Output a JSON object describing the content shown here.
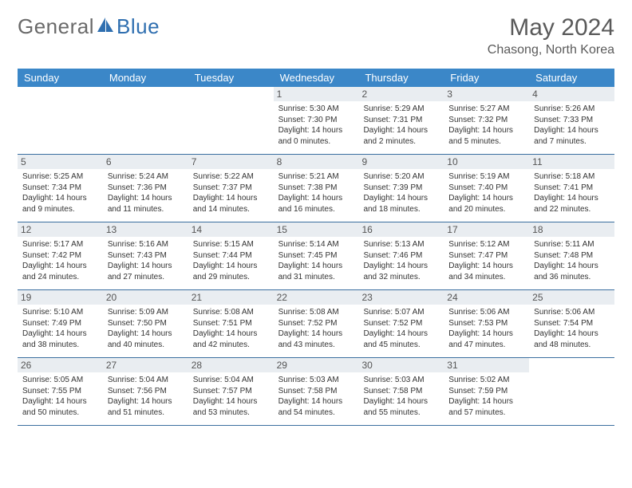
{
  "brand": {
    "word1": "General",
    "word2": "Blue"
  },
  "title": "May 2024",
  "location": "Chasong, North Korea",
  "colors": {
    "header_bg": "#3b87c8",
    "header_text": "#ffffff",
    "daynum_bg": "#e9edf1",
    "row_border": "#3b6fa0",
    "logo_gray": "#6a6a6a",
    "logo_blue": "#2f6fb0",
    "text": "#333333"
  },
  "day_headers": [
    "Sunday",
    "Monday",
    "Tuesday",
    "Wednesday",
    "Thursday",
    "Friday",
    "Saturday"
  ],
  "weeks": [
    [
      {
        "n": "",
        "sunrise": "",
        "sunset": "",
        "daylight": ""
      },
      {
        "n": "",
        "sunrise": "",
        "sunset": "",
        "daylight": ""
      },
      {
        "n": "",
        "sunrise": "",
        "sunset": "",
        "daylight": ""
      },
      {
        "n": "1",
        "sunrise": "Sunrise: 5:30 AM",
        "sunset": "Sunset: 7:30 PM",
        "daylight": "Daylight: 14 hours and 0 minutes."
      },
      {
        "n": "2",
        "sunrise": "Sunrise: 5:29 AM",
        "sunset": "Sunset: 7:31 PM",
        "daylight": "Daylight: 14 hours and 2 minutes."
      },
      {
        "n": "3",
        "sunrise": "Sunrise: 5:27 AM",
        "sunset": "Sunset: 7:32 PM",
        "daylight": "Daylight: 14 hours and 5 minutes."
      },
      {
        "n": "4",
        "sunrise": "Sunrise: 5:26 AM",
        "sunset": "Sunset: 7:33 PM",
        "daylight": "Daylight: 14 hours and 7 minutes."
      }
    ],
    [
      {
        "n": "5",
        "sunrise": "Sunrise: 5:25 AM",
        "sunset": "Sunset: 7:34 PM",
        "daylight": "Daylight: 14 hours and 9 minutes."
      },
      {
        "n": "6",
        "sunrise": "Sunrise: 5:24 AM",
        "sunset": "Sunset: 7:36 PM",
        "daylight": "Daylight: 14 hours and 11 minutes."
      },
      {
        "n": "7",
        "sunrise": "Sunrise: 5:22 AM",
        "sunset": "Sunset: 7:37 PM",
        "daylight": "Daylight: 14 hours and 14 minutes."
      },
      {
        "n": "8",
        "sunrise": "Sunrise: 5:21 AM",
        "sunset": "Sunset: 7:38 PM",
        "daylight": "Daylight: 14 hours and 16 minutes."
      },
      {
        "n": "9",
        "sunrise": "Sunrise: 5:20 AM",
        "sunset": "Sunset: 7:39 PM",
        "daylight": "Daylight: 14 hours and 18 minutes."
      },
      {
        "n": "10",
        "sunrise": "Sunrise: 5:19 AM",
        "sunset": "Sunset: 7:40 PM",
        "daylight": "Daylight: 14 hours and 20 minutes."
      },
      {
        "n": "11",
        "sunrise": "Sunrise: 5:18 AM",
        "sunset": "Sunset: 7:41 PM",
        "daylight": "Daylight: 14 hours and 22 minutes."
      }
    ],
    [
      {
        "n": "12",
        "sunrise": "Sunrise: 5:17 AM",
        "sunset": "Sunset: 7:42 PM",
        "daylight": "Daylight: 14 hours and 24 minutes."
      },
      {
        "n": "13",
        "sunrise": "Sunrise: 5:16 AM",
        "sunset": "Sunset: 7:43 PM",
        "daylight": "Daylight: 14 hours and 27 minutes."
      },
      {
        "n": "14",
        "sunrise": "Sunrise: 5:15 AM",
        "sunset": "Sunset: 7:44 PM",
        "daylight": "Daylight: 14 hours and 29 minutes."
      },
      {
        "n": "15",
        "sunrise": "Sunrise: 5:14 AM",
        "sunset": "Sunset: 7:45 PM",
        "daylight": "Daylight: 14 hours and 31 minutes."
      },
      {
        "n": "16",
        "sunrise": "Sunrise: 5:13 AM",
        "sunset": "Sunset: 7:46 PM",
        "daylight": "Daylight: 14 hours and 32 minutes."
      },
      {
        "n": "17",
        "sunrise": "Sunrise: 5:12 AM",
        "sunset": "Sunset: 7:47 PM",
        "daylight": "Daylight: 14 hours and 34 minutes."
      },
      {
        "n": "18",
        "sunrise": "Sunrise: 5:11 AM",
        "sunset": "Sunset: 7:48 PM",
        "daylight": "Daylight: 14 hours and 36 minutes."
      }
    ],
    [
      {
        "n": "19",
        "sunrise": "Sunrise: 5:10 AM",
        "sunset": "Sunset: 7:49 PM",
        "daylight": "Daylight: 14 hours and 38 minutes."
      },
      {
        "n": "20",
        "sunrise": "Sunrise: 5:09 AM",
        "sunset": "Sunset: 7:50 PM",
        "daylight": "Daylight: 14 hours and 40 minutes."
      },
      {
        "n": "21",
        "sunrise": "Sunrise: 5:08 AM",
        "sunset": "Sunset: 7:51 PM",
        "daylight": "Daylight: 14 hours and 42 minutes."
      },
      {
        "n": "22",
        "sunrise": "Sunrise: 5:08 AM",
        "sunset": "Sunset: 7:52 PM",
        "daylight": "Daylight: 14 hours and 43 minutes."
      },
      {
        "n": "23",
        "sunrise": "Sunrise: 5:07 AM",
        "sunset": "Sunset: 7:52 PM",
        "daylight": "Daylight: 14 hours and 45 minutes."
      },
      {
        "n": "24",
        "sunrise": "Sunrise: 5:06 AM",
        "sunset": "Sunset: 7:53 PM",
        "daylight": "Daylight: 14 hours and 47 minutes."
      },
      {
        "n": "25",
        "sunrise": "Sunrise: 5:06 AM",
        "sunset": "Sunset: 7:54 PM",
        "daylight": "Daylight: 14 hours and 48 minutes."
      }
    ],
    [
      {
        "n": "26",
        "sunrise": "Sunrise: 5:05 AM",
        "sunset": "Sunset: 7:55 PM",
        "daylight": "Daylight: 14 hours and 50 minutes."
      },
      {
        "n": "27",
        "sunrise": "Sunrise: 5:04 AM",
        "sunset": "Sunset: 7:56 PM",
        "daylight": "Daylight: 14 hours and 51 minutes."
      },
      {
        "n": "28",
        "sunrise": "Sunrise: 5:04 AM",
        "sunset": "Sunset: 7:57 PM",
        "daylight": "Daylight: 14 hours and 53 minutes."
      },
      {
        "n": "29",
        "sunrise": "Sunrise: 5:03 AM",
        "sunset": "Sunset: 7:58 PM",
        "daylight": "Daylight: 14 hours and 54 minutes."
      },
      {
        "n": "30",
        "sunrise": "Sunrise: 5:03 AM",
        "sunset": "Sunset: 7:58 PM",
        "daylight": "Daylight: 14 hours and 55 minutes."
      },
      {
        "n": "31",
        "sunrise": "Sunrise: 5:02 AM",
        "sunset": "Sunset: 7:59 PM",
        "daylight": "Daylight: 14 hours and 57 minutes."
      },
      {
        "n": "",
        "sunrise": "",
        "sunset": "",
        "daylight": ""
      }
    ]
  ]
}
